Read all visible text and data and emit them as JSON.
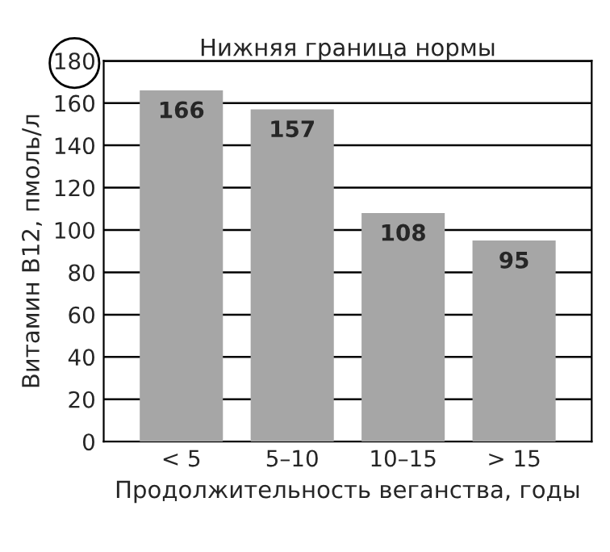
{
  "chart_data": {
    "type": "bar",
    "xlabel": "Продолжительность веганства, годы",
    "ylabel": "Витамин B12, пмоль/л",
    "categories": [
      "< 5",
      "5–10",
      "10–15",
      "> 15"
    ],
    "values": [
      166,
      157,
      108,
      95
    ],
    "color": "#a6a6a6",
    "ylim": [
      0,
      180
    ],
    "yticks": [
      0,
      20,
      40,
      60,
      80,
      100,
      120,
      140,
      160,
      180
    ],
    "ref_lines": [
      {
        "axis": "y",
        "value": 180,
        "label": "Нижняя граница нормы",
        "color": "#000000"
      }
    ],
    "grid": "y",
    "data_labels": true
  }
}
